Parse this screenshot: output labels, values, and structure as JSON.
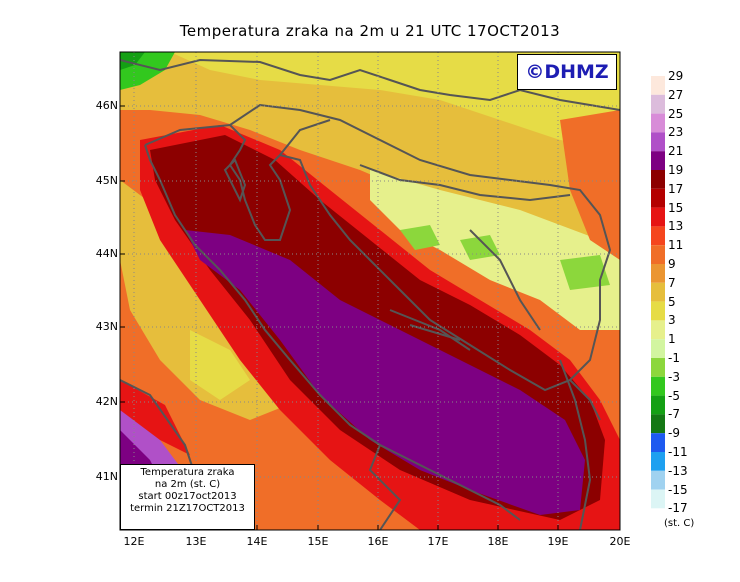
{
  "title": "Temperatura zraka na 2m u 21 UTC 17OCT2013",
  "logo": "©DHMZ",
  "info_box": {
    "line1": "Temperatura zraka",
    "line2": "na 2m (st. C)",
    "line3": "start 00z17oct2013",
    "line4": "termin 21Z17OCT2013"
  },
  "lat_labels": [
    "46N",
    "45N",
    "44N",
    "43N",
    "42N",
    "41N"
  ],
  "lon_labels": [
    "12E",
    "13E",
    "14E",
    "15E",
    "16E",
    "17E",
    "18E",
    "19E",
    "20E"
  ],
  "legend": {
    "units": "(st. C)",
    "levels": [
      "29",
      "27",
      "25",
      "23",
      "21",
      "19",
      "17",
      "15",
      "13",
      "11",
      "9",
      "7",
      "5",
      "3",
      "1",
      "-1",
      "-3",
      "-5",
      "-7",
      "-9",
      "-11",
      "-13",
      "-15",
      "-17"
    ],
    "colors": [
      "#fde8dc",
      "#dcbcdc",
      "#d88cd8",
      "#b050c8",
      "#7d0082",
      "#8c0000",
      "#b40000",
      "#e61414",
      "#f5461e",
      "#f06e28",
      "#eb9632",
      "#e6be3c",
      "#e6dc46",
      "#e6f08c",
      "#d2f5a0",
      "#8cd73c",
      "#32c81e",
      "#14a014",
      "#147814",
      "#1e5af0",
      "#1ea0f0",
      "#a0d2f0",
      "#dcf5f5",
      "#ffffff"
    ]
  }
}
